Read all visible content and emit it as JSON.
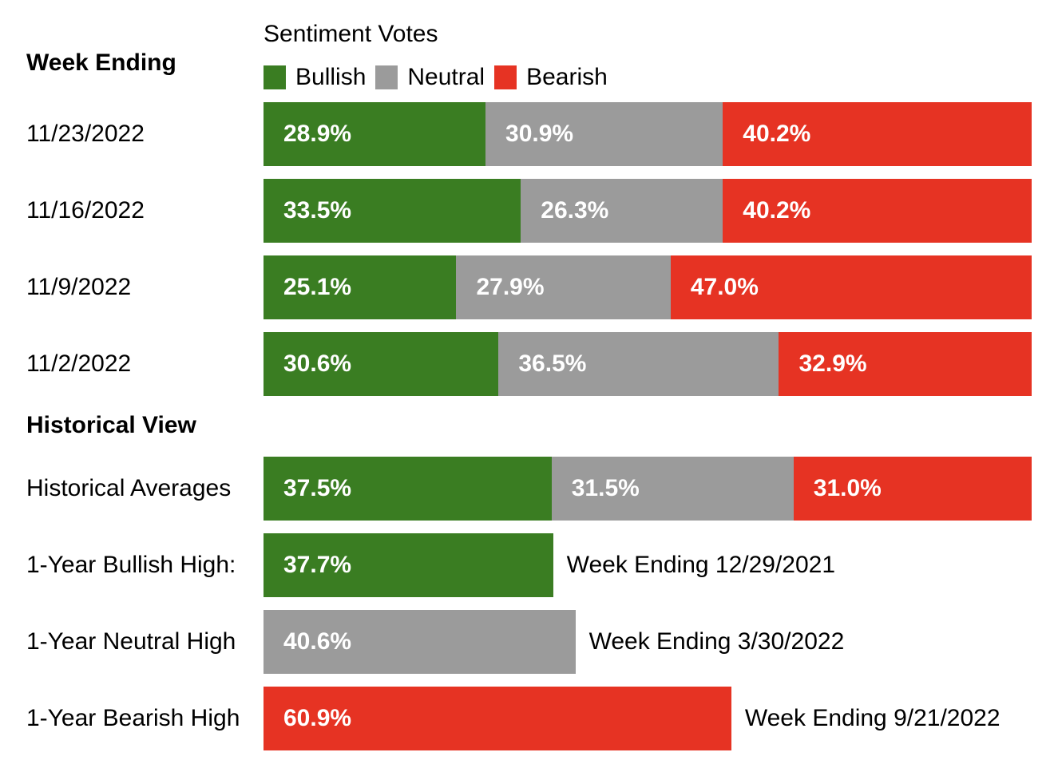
{
  "colors": {
    "bullish": "#3A7D22",
    "neutral": "#9B9B9B",
    "bearish": "#E63323"
  },
  "header": {
    "week_ending_label": "Week Ending",
    "chart_title": "Sentiment Votes",
    "legend": {
      "bullish": "Bullish",
      "neutral": "Neutral",
      "bearish": "Bearish"
    }
  },
  "weeks": [
    {
      "label": "11/23/2022",
      "bullish": {
        "pct": 28.9,
        "text": "28.9%"
      },
      "neutral": {
        "pct": 30.9,
        "text": "30.9%"
      },
      "bearish": {
        "pct": 40.2,
        "text": "40.2%"
      }
    },
    {
      "label": "11/16/2022",
      "bullish": {
        "pct": 33.5,
        "text": "33.5%"
      },
      "neutral": {
        "pct": 26.3,
        "text": "26.3%"
      },
      "bearish": {
        "pct": 40.2,
        "text": "40.2%"
      }
    },
    {
      "label": "11/9/2022",
      "bullish": {
        "pct": 25.1,
        "text": "25.1%"
      },
      "neutral": {
        "pct": 27.9,
        "text": "27.9%"
      },
      "bearish": {
        "pct": 47.0,
        "text": "47.0%"
      }
    },
    {
      "label": "11/2/2022",
      "bullish": {
        "pct": 30.6,
        "text": "30.6%"
      },
      "neutral": {
        "pct": 36.5,
        "text": "36.5%"
      },
      "bearish": {
        "pct": 32.9,
        "text": "32.9%"
      }
    }
  ],
  "historical_view": {
    "heading": "Historical View",
    "averages": {
      "label": "Historical Averages",
      "bullish": {
        "pct": 37.5,
        "text": "37.5%"
      },
      "neutral": {
        "pct": 31.5,
        "text": "31.5%"
      },
      "bearish": {
        "pct": 31.0,
        "text": "31.0%"
      }
    },
    "highs": [
      {
        "label": "1-Year Bullish High:",
        "series": "bullish",
        "pct": 37.7,
        "text": "37.7%",
        "caption": "Week Ending 12/29/2021"
      },
      {
        "label": "1-Year Neutral High",
        "series": "neutral",
        "pct": 40.6,
        "text": "40.6%",
        "caption": "Week Ending 3/30/2022"
      },
      {
        "label": "1-Year Bearish High",
        "series": "bearish",
        "pct": 60.9,
        "text": "60.9%",
        "caption": "Week Ending 9/21/2022"
      }
    ]
  },
  "chart_data": {
    "type": "bar",
    "orientation": "horizontal",
    "stacked": true,
    "title": "Sentiment Votes",
    "row_header": "Week Ending",
    "legend_position": "top",
    "legend_entries": [
      "Bullish",
      "Neutral",
      "Bearish"
    ],
    "series_colors": {
      "Bullish": "#3A7D22",
      "Neutral": "#9B9B9B",
      "Bearish": "#E63323"
    },
    "value_format": "percent",
    "xlim": [
      0,
      100
    ],
    "categories": [
      "11/23/2022",
      "11/16/2022",
      "11/9/2022",
      "11/2/2022"
    ],
    "series": [
      {
        "name": "Bullish",
        "values": [
          28.9,
          33.5,
          25.1,
          30.6
        ]
      },
      {
        "name": "Neutral",
        "values": [
          30.9,
          26.3,
          27.9,
          36.5
        ]
      },
      {
        "name": "Bearish",
        "values": [
          40.2,
          40.2,
          47.0,
          32.9
        ]
      }
    ],
    "historical_section": {
      "heading": "Historical View",
      "historical_averages": {
        "Bullish": 37.5,
        "Neutral": 31.5,
        "Bearish": 31.0
      },
      "one_year_highs": [
        {
          "label": "1-Year Bullish High:",
          "series": "Bullish",
          "value": 37.7,
          "annotation": "Week Ending 12/29/2021"
        },
        {
          "label": "1-Year Neutral High",
          "series": "Neutral",
          "value": 40.6,
          "annotation": "Week Ending 3/30/2022"
        },
        {
          "label": "1-Year Bearish High",
          "series": "Bearish",
          "value": 60.9,
          "annotation": "Week Ending 9/21/2022"
        }
      ]
    }
  }
}
